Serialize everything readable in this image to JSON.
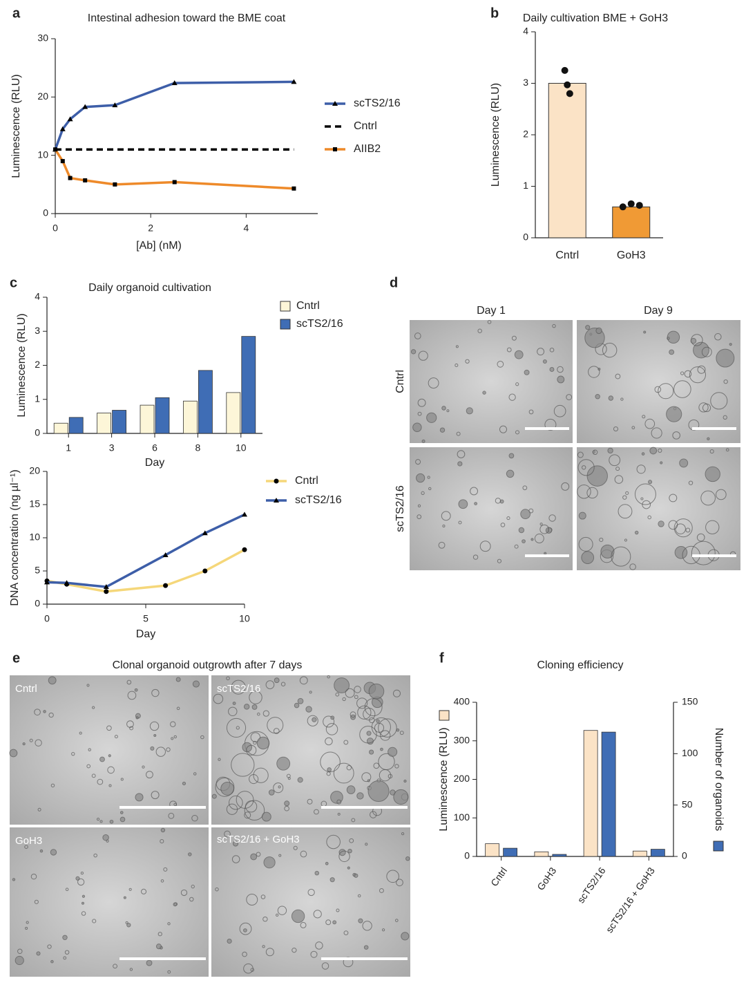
{
  "panel_labels": [
    "a",
    "b",
    "c",
    "d",
    "e",
    "f"
  ],
  "chart_data": [
    {
      "type": "line",
      "title": "Intestinal adhesion toward the BME coat",
      "xlabel": "[Ab] (nM)",
      "ylabel": "Luminescence (RLU)",
      "x": [
        0,
        0.156,
        0.3125,
        0.625,
        1.25,
        2.5,
        5
      ],
      "xlim": [
        0,
        5.5
      ],
      "xticks": [
        0,
        2,
        4
      ],
      "ylim": [
        0,
        30
      ],
      "yticks": [
        0,
        10,
        20,
        30
      ],
      "series": [
        {
          "name": "scTS2/16",
          "color": "#3d5ea8",
          "marker": "triangle",
          "values": [
            11,
            14.5,
            16.2,
            18.3,
            18.6,
            22.4,
            22.6
          ]
        },
        {
          "name": "Cntrl",
          "color": "#000000",
          "line_style": "dashed",
          "values": [
            11,
            11,
            11,
            11,
            11,
            11,
            11
          ]
        },
        {
          "name": "AIIB2",
          "color": "#ee8a2a",
          "marker": "square",
          "values": [
            11,
            9,
            6.1,
            5.7,
            5,
            5.4,
            4.3
          ]
        }
      ]
    },
    {
      "type": "bar",
      "title": "Daily cultivation BME + GoH3",
      "ylabel": "Luminescence (RLU)",
      "categories": [
        "Cntrl",
        "GoH3"
      ],
      "values": [
        3.0,
        0.6
      ],
      "colors": [
        "#fbe3c6",
        "#f09a35"
      ],
      "points": [
        [
          3.25,
          2.97,
          2.8
        ],
        [
          0.6,
          0.66,
          0.63
        ]
      ],
      "ylim": [
        0,
        4
      ],
      "yticks": [
        0,
        1,
        2,
        3,
        4
      ]
    },
    {
      "type": "grouped_bar",
      "title": "Daily organoid cultivation",
      "xlabel": "Day",
      "ylabel": "Luminescence (RLU)",
      "categories": [
        "1",
        "3",
        "6",
        "8",
        "10"
      ],
      "series": [
        {
          "name": "Cntrl",
          "color": "#fdf6d8",
          "values": [
            0.3,
            0.6,
            0.83,
            0.95,
            1.2
          ]
        },
        {
          "name": "scTS2/16",
          "color": "#3f6db5",
          "values": [
            0.47,
            0.68,
            1.05,
            1.85,
            2.85
          ]
        }
      ],
      "ylim": [
        0,
        4
      ],
      "yticks": [
        0,
        1,
        2,
        3,
        4
      ]
    },
    {
      "type": "line",
      "xlabel": "Day",
      "ylabel": "DNA concentration (ng µl⁻¹)",
      "x": [
        0,
        1,
        3,
        6,
        8,
        10
      ],
      "xlim": [
        0,
        10
      ],
      "xticks": [
        0,
        5,
        10
      ],
      "ylim": [
        0,
        20
      ],
      "yticks": [
        0,
        5,
        10,
        15,
        20
      ],
      "series": [
        {
          "name": "Cntrl",
          "color": "#f5d77a",
          "marker": "circle",
          "values": [
            3.5,
            3.0,
            1.9,
            2.8,
            5.0,
            8.2
          ]
        },
        {
          "name": "scTS2/16",
          "color": "#3d5ea8",
          "marker": "triangle",
          "values": [
            3.3,
            3.2,
            2.6,
            7.4,
            10.7,
            13.5
          ]
        }
      ]
    },
    {
      "type": "grouped_bar",
      "title": "Cloning efficiency",
      "ylabel": "Luminescence (RLU)",
      "y2label": "Number of organoids",
      "categories": [
        "Cntrl",
        "GoH3",
        "scTS2/16",
        "scTS2/16 + GoH3"
      ],
      "series": [
        {
          "color": "#fbe3c6",
          "values": [
            33,
            12,
            327,
            14
          ]
        },
        {
          "color": "#3f6db5",
          "axis": "y2",
          "values": [
            8,
            2,
            121,
            7
          ]
        }
      ],
      "ylim": [
        0,
        400
      ],
      "yticks": [
        0,
        100,
        200,
        300,
        400
      ],
      "y2lim": [
        0,
        150
      ],
      "y2ticks": [
        0,
        50,
        100,
        150
      ]
    }
  ],
  "images": {
    "d": {
      "columns": [
        "Day 1",
        "Day 9"
      ],
      "rows": [
        "Cntrl",
        "scTS2/16"
      ]
    },
    "e": {
      "title": "Clonal organoid outgrowth after 7 days",
      "labels": [
        "Cntrl",
        "scTS2/16",
        "GoH3",
        "scTS2/16 + GoH3"
      ]
    }
  }
}
